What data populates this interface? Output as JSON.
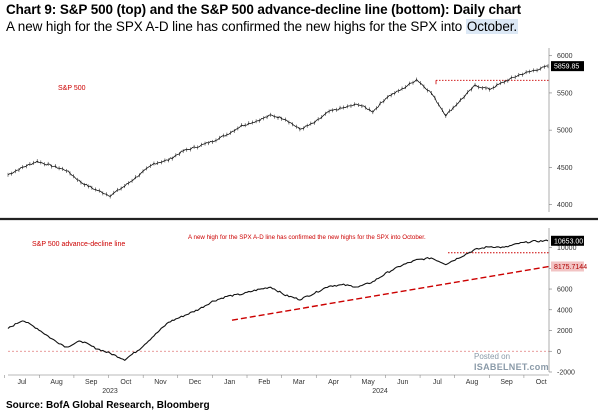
{
  "title": "Chart 9: S&P 500 (top) and the S&P 500 advance-decline line (bottom): Daily chart",
  "subtitle_main": "A new high for the SPX A-D line has confirmed the new highs for the SPX into ",
  "subtitle_highlight": "October.",
  "source": "Source: BofA Global Research, Bloomberg",
  "watermark": {
    "posted": "Posted on",
    "site": "ISABELNET.com"
  },
  "colors": {
    "series": "#111111",
    "reference": "#cc0000",
    "badge_bg": "#000000",
    "badge_red_bg": "#f2c4c4",
    "highlight": "#dce8f5"
  },
  "chart_data": [
    {
      "type": "line",
      "title": "S&P 500",
      "series": [
        {
          "name": "S&P 500",
          "values": [
            4400,
            4500,
            4580,
            4520,
            4460,
            4300,
            4200,
            4120,
            4250,
            4400,
            4550,
            4600,
            4720,
            4780,
            4850,
            4940,
            5060,
            5120,
            5200,
            5150,
            5010,
            5100,
            5250,
            5300,
            5350,
            5250,
            5450,
            5550,
            5680,
            5500,
            5200,
            5400,
            5600,
            5550,
            5650,
            5740,
            5800,
            5860
          ]
        }
      ],
      "ylim": [
        3900,
        6050
      ],
      "yticks": [
        4000,
        4500,
        5000,
        5500,
        6000
      ],
      "last_value_label": "5859.85",
      "reference_line": 5670,
      "grid": false
    },
    {
      "type": "line",
      "title": "S&P 500 advance-decline line",
      "annotation": "A new high for the SPX A-D line has confirmed the new highs for the SPX into October.",
      "series": [
        {
          "name": "S&P 500 advance-decline line",
          "values": [
            2200,
            3000,
            2200,
            1200,
            400,
            1000,
            300,
            -200,
            -800,
            200,
            1500,
            2800,
            3400,
            4000,
            4800,
            5300,
            5500,
            5900,
            6200,
            5400,
            5000,
            5600,
            6300,
            6400,
            6200,
            6700,
            7600,
            8300,
            8800,
            9000,
            8400,
            9100,
            9800,
            10100,
            10000,
            10400,
            10600,
            10653
          ]
        }
      ],
      "ylim": [
        -2000,
        11500
      ],
      "yticks": [
        -2000,
        0,
        2000,
        4000,
        6000,
        8000,
        10000
      ],
      "last_value_label": "10653.00",
      "trendline_label": "8175.7144",
      "trendline": [
        3000,
        8175.7144
      ],
      "reference_line": 9500,
      "grid": false
    }
  ],
  "x_axis": {
    "months": [
      "Jul",
      "Aug",
      "Sep",
      "Oct",
      "Nov",
      "Dec",
      "Jan",
      "Feb",
      "Mar",
      "Apr",
      "May",
      "Jun",
      "Jul",
      "Aug",
      "Sep",
      "Oct"
    ],
    "years": [
      "2023",
      "2024"
    ]
  }
}
